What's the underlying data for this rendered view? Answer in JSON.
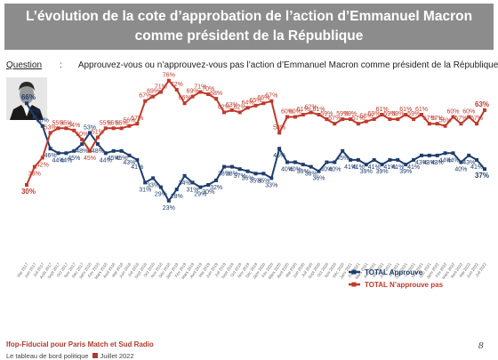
{
  "header": {
    "title_line1": "L’évolution de la cote d’approbation de l’action d’Emmanuel Macron",
    "title_line2": "comme président de la République"
  },
  "question": {
    "label": "Question",
    "text": "Approuvez-vous ou n’approuvez-vous pas l’action d’Emmanuel Macron comme président de la République ?"
  },
  "footer": {
    "source": "Ifop-Fiducial pour Paris Match et Sud Radio",
    "publication": "Le tableau de bord politique",
    "date": "Juillet 2022",
    "page_number": "8"
  },
  "chart_data": {
    "type": "line",
    "x": [
      "Mai 2017",
      "Juin 2017",
      "Juil 2017",
      "Août 2017",
      "Sept 2017",
      "Oct 2017",
      "Nov 2017",
      "Déc 2017",
      "Janv 2018",
      "Fév 2018",
      "Mars 2018",
      "Avril 2018",
      "Mai 2018",
      "Juin 2018",
      "Juil 2018",
      "Sept 2018",
      "Oct 2018",
      "Nov 2018",
      "Déc 2018",
      "Janv 2019",
      "Fév 2019",
      "Mars 2019",
      "Avril 2019",
      "Mai 2019",
      "Juin 2019",
      "Juil 2019",
      "Sept 2019",
      "Oct 2019",
      "Nov 2019",
      "Déc 2019",
      "Janv 2020",
      "Fév 2020",
      "Mars 2020",
      "Avril 2020",
      "Mai 2020",
      "Juin 2020",
      "Juil 2020",
      "Sept 2020",
      "Oct 2020",
      "Nov 2020",
      "Déc 2020",
      "Janv 2021",
      "Fév 2021",
      "Mars 2021",
      "Avril 2021",
      "Mai 2021",
      "Juin 2021",
      "Juil 2021",
      "Sept 2021",
      "Oct 2021",
      "Nov 2021",
      "Déc 2021",
      "Janv 2022",
      "Fév 2022",
      "Mars 2022",
      "Avril 2022",
      "Mai 2022",
      "Juin 2022",
      "Juil 2022"
    ],
    "series": [
      {
        "name": "TOTAL Approuve",
        "color": "#1f3d6e",
        "values": [
          66,
          60,
          56,
          46,
          44,
          44,
          45,
          48,
          53,
          48,
          44,
          45,
          45,
          43,
          41,
          31,
          33,
          29,
          23,
          28,
          34,
          31,
          29,
          30,
          32,
          38,
          38,
          37,
          36,
          35,
          35,
          33,
          46,
          40,
          40,
          39,
          38,
          36,
          40,
          40,
          45,
          41,
          41,
          39,
          41,
          39,
          41,
          41,
          39,
          41,
          43,
          43,
          43,
          44,
          44,
          40,
          43,
          41,
          37
        ]
      },
      {
        "name": "TOTAL N’approuve pas",
        "color": "#c0392b",
        "values": [
          30,
          38,
          42,
          53,
          55,
          55,
          54,
          50,
          45,
          51,
          55,
          55,
          55,
          56,
          57,
          67,
          69,
          71,
          76,
          72,
          66,
          69,
          71,
          70,
          68,
          62,
          63,
          62,
          64,
          65,
          66,
          67,
          53,
          60,
          60,
          61,
          62,
          61,
          59,
          57,
          59,
          59,
          57,
          58,
          59,
          61,
          59,
          59,
          61,
          59,
          61,
          57,
          57,
          56,
          60,
          57,
          60,
          57,
          63
        ]
      }
    ],
    "legend_position": "bottom-right",
    "grid": false
  }
}
